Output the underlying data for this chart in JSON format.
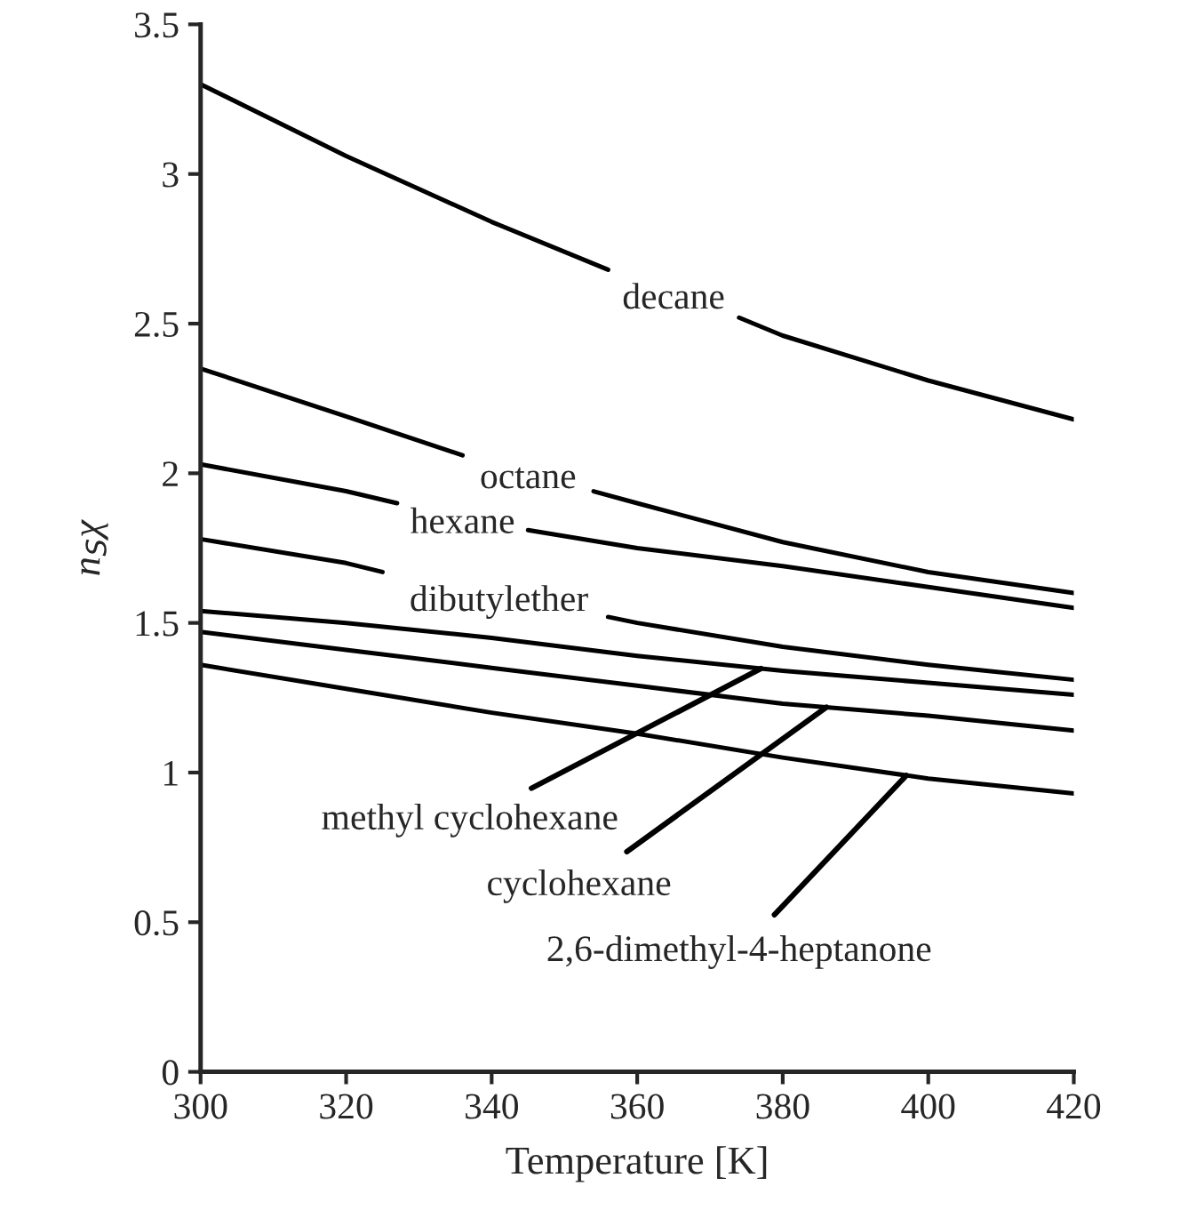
{
  "chart_data": {
    "type": "line",
    "xlabel": "Temperature [K]",
    "ylabel": "n$_{S}$χ",
    "x": [
      300,
      320,
      340,
      360,
      380,
      400,
      420
    ],
    "series": [
      {
        "name": "decane",
        "color": "#000000",
        "x": [
          300,
          320,
          340,
          356,
          365,
          374,
          380,
          400,
          420
        ],
        "values": [
          3.3,
          3.06,
          2.84,
          2.68,
          null,
          2.52,
          2.46,
          2.31,
          2.18
        ]
      },
      {
        "name": "octane",
        "color": "#000000",
        "x": [
          300,
          320,
          336,
          345,
          354,
          360,
          380,
          400,
          420
        ],
        "values": [
          2.35,
          2.19,
          2.06,
          null,
          1.94,
          1.9,
          1.77,
          1.67,
          1.6
        ]
      },
      {
        "name": "hexane",
        "color": "#000000",
        "x": [
          300,
          320,
          327,
          336,
          345,
          360,
          380,
          400,
          420
        ],
        "values": [
          2.03,
          1.94,
          1.9,
          null,
          1.81,
          1.75,
          1.69,
          1.62,
          1.55
        ]
      },
      {
        "name": "dibutylether",
        "color": "#000000",
        "x": [
          300,
          320,
          325,
          340,
          356,
          360,
          380,
          400,
          420
        ],
        "values": [
          1.78,
          1.7,
          1.67,
          null,
          1.52,
          1.5,
          1.42,
          1.36,
          1.31
        ]
      },
      {
        "name": "methyl cyclohexane",
        "color": "#000000",
        "values": [
          1.54,
          1.5,
          1.45,
          1.39,
          1.34,
          1.3,
          1.26
        ]
      },
      {
        "name": "cyclohexane",
        "color": "#000000",
        "values": [
          1.47,
          1.41,
          1.35,
          1.29,
          1.23,
          1.19,
          1.14
        ]
      },
      {
        "name": "2,6-dimethyl-4-heptanone",
        "color": "#000000",
        "values": [
          1.36,
          1.28,
          1.2,
          1.13,
          1.05,
          0.98,
          0.93
        ]
      }
    ],
    "xlim": [
      300,
      420
    ],
    "xticks": [
      300,
      320,
      340,
      360,
      380,
      400,
      420
    ],
    "ylim": [
      0,
      3.5
    ],
    "yticks": [
      0,
      0.5,
      1,
      1.5,
      2,
      2.5,
      3,
      3.5
    ],
    "grid": false,
    "legend": false,
    "marker": "none",
    "line_style": "solid"
  }
}
